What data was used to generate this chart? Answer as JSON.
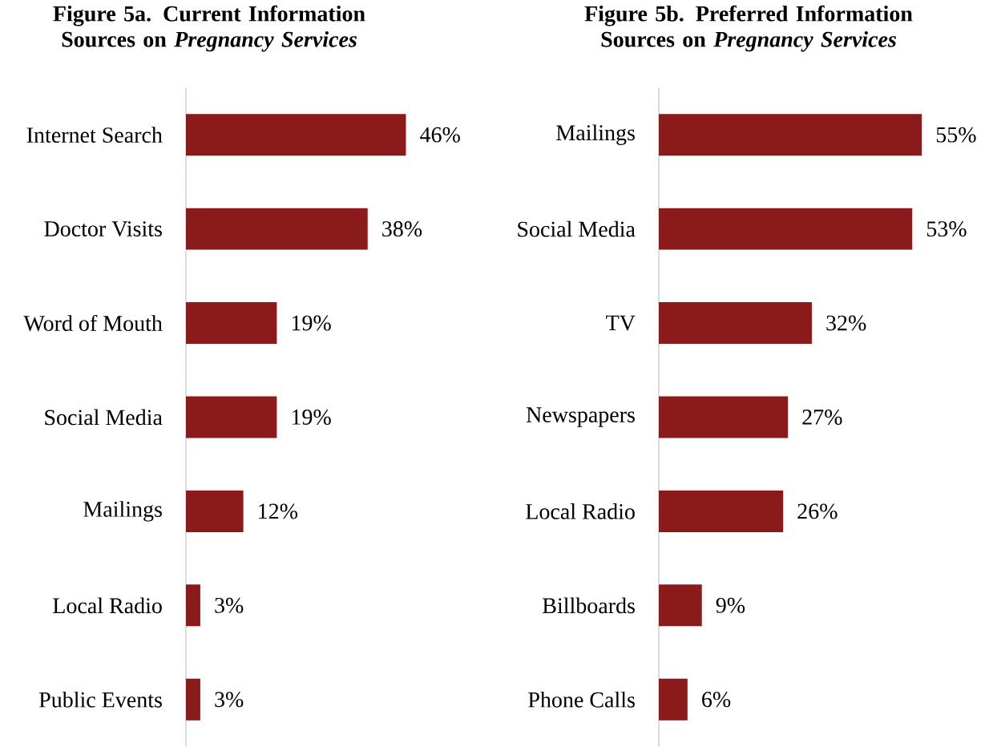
{
  "chart_data": [
    {
      "type": "bar",
      "orientation": "horizontal",
      "title": "Figure 5a. Current Information Sources on *Pregnancy Services*",
      "categories": [
        "Internet Search",
        "Doctor Visits",
        "Word of Mouth",
        "Social Media",
        "Mailings",
        "Local Radio",
        "Public Events"
      ],
      "values": [
        46,
        38,
        19,
        19,
        12,
        3,
        3
      ],
      "value_labels": [
        "46%",
        "38%",
        "19%",
        "19%",
        "12%",
        "3%",
        "3%"
      ],
      "color": "#8b1a1a"
    },
    {
      "type": "bar",
      "orientation": "horizontal",
      "title": "Figure 5b. Preferred Information Sources on *Pregnancy Services*",
      "categories": [
        "Mailings",
        "Social Media",
        "TV",
        "Newspapers",
        "Local Radio",
        "Billboards",
        "Phone Calls"
      ],
      "values": [
        55,
        53,
        32,
        27,
        26,
        9,
        6
      ],
      "value_labels": [
        "55%",
        "53%",
        "32%",
        "27%",
        "26%",
        "9%",
        "6%"
      ],
      "color": "#8b1a1a"
    }
  ]
}
